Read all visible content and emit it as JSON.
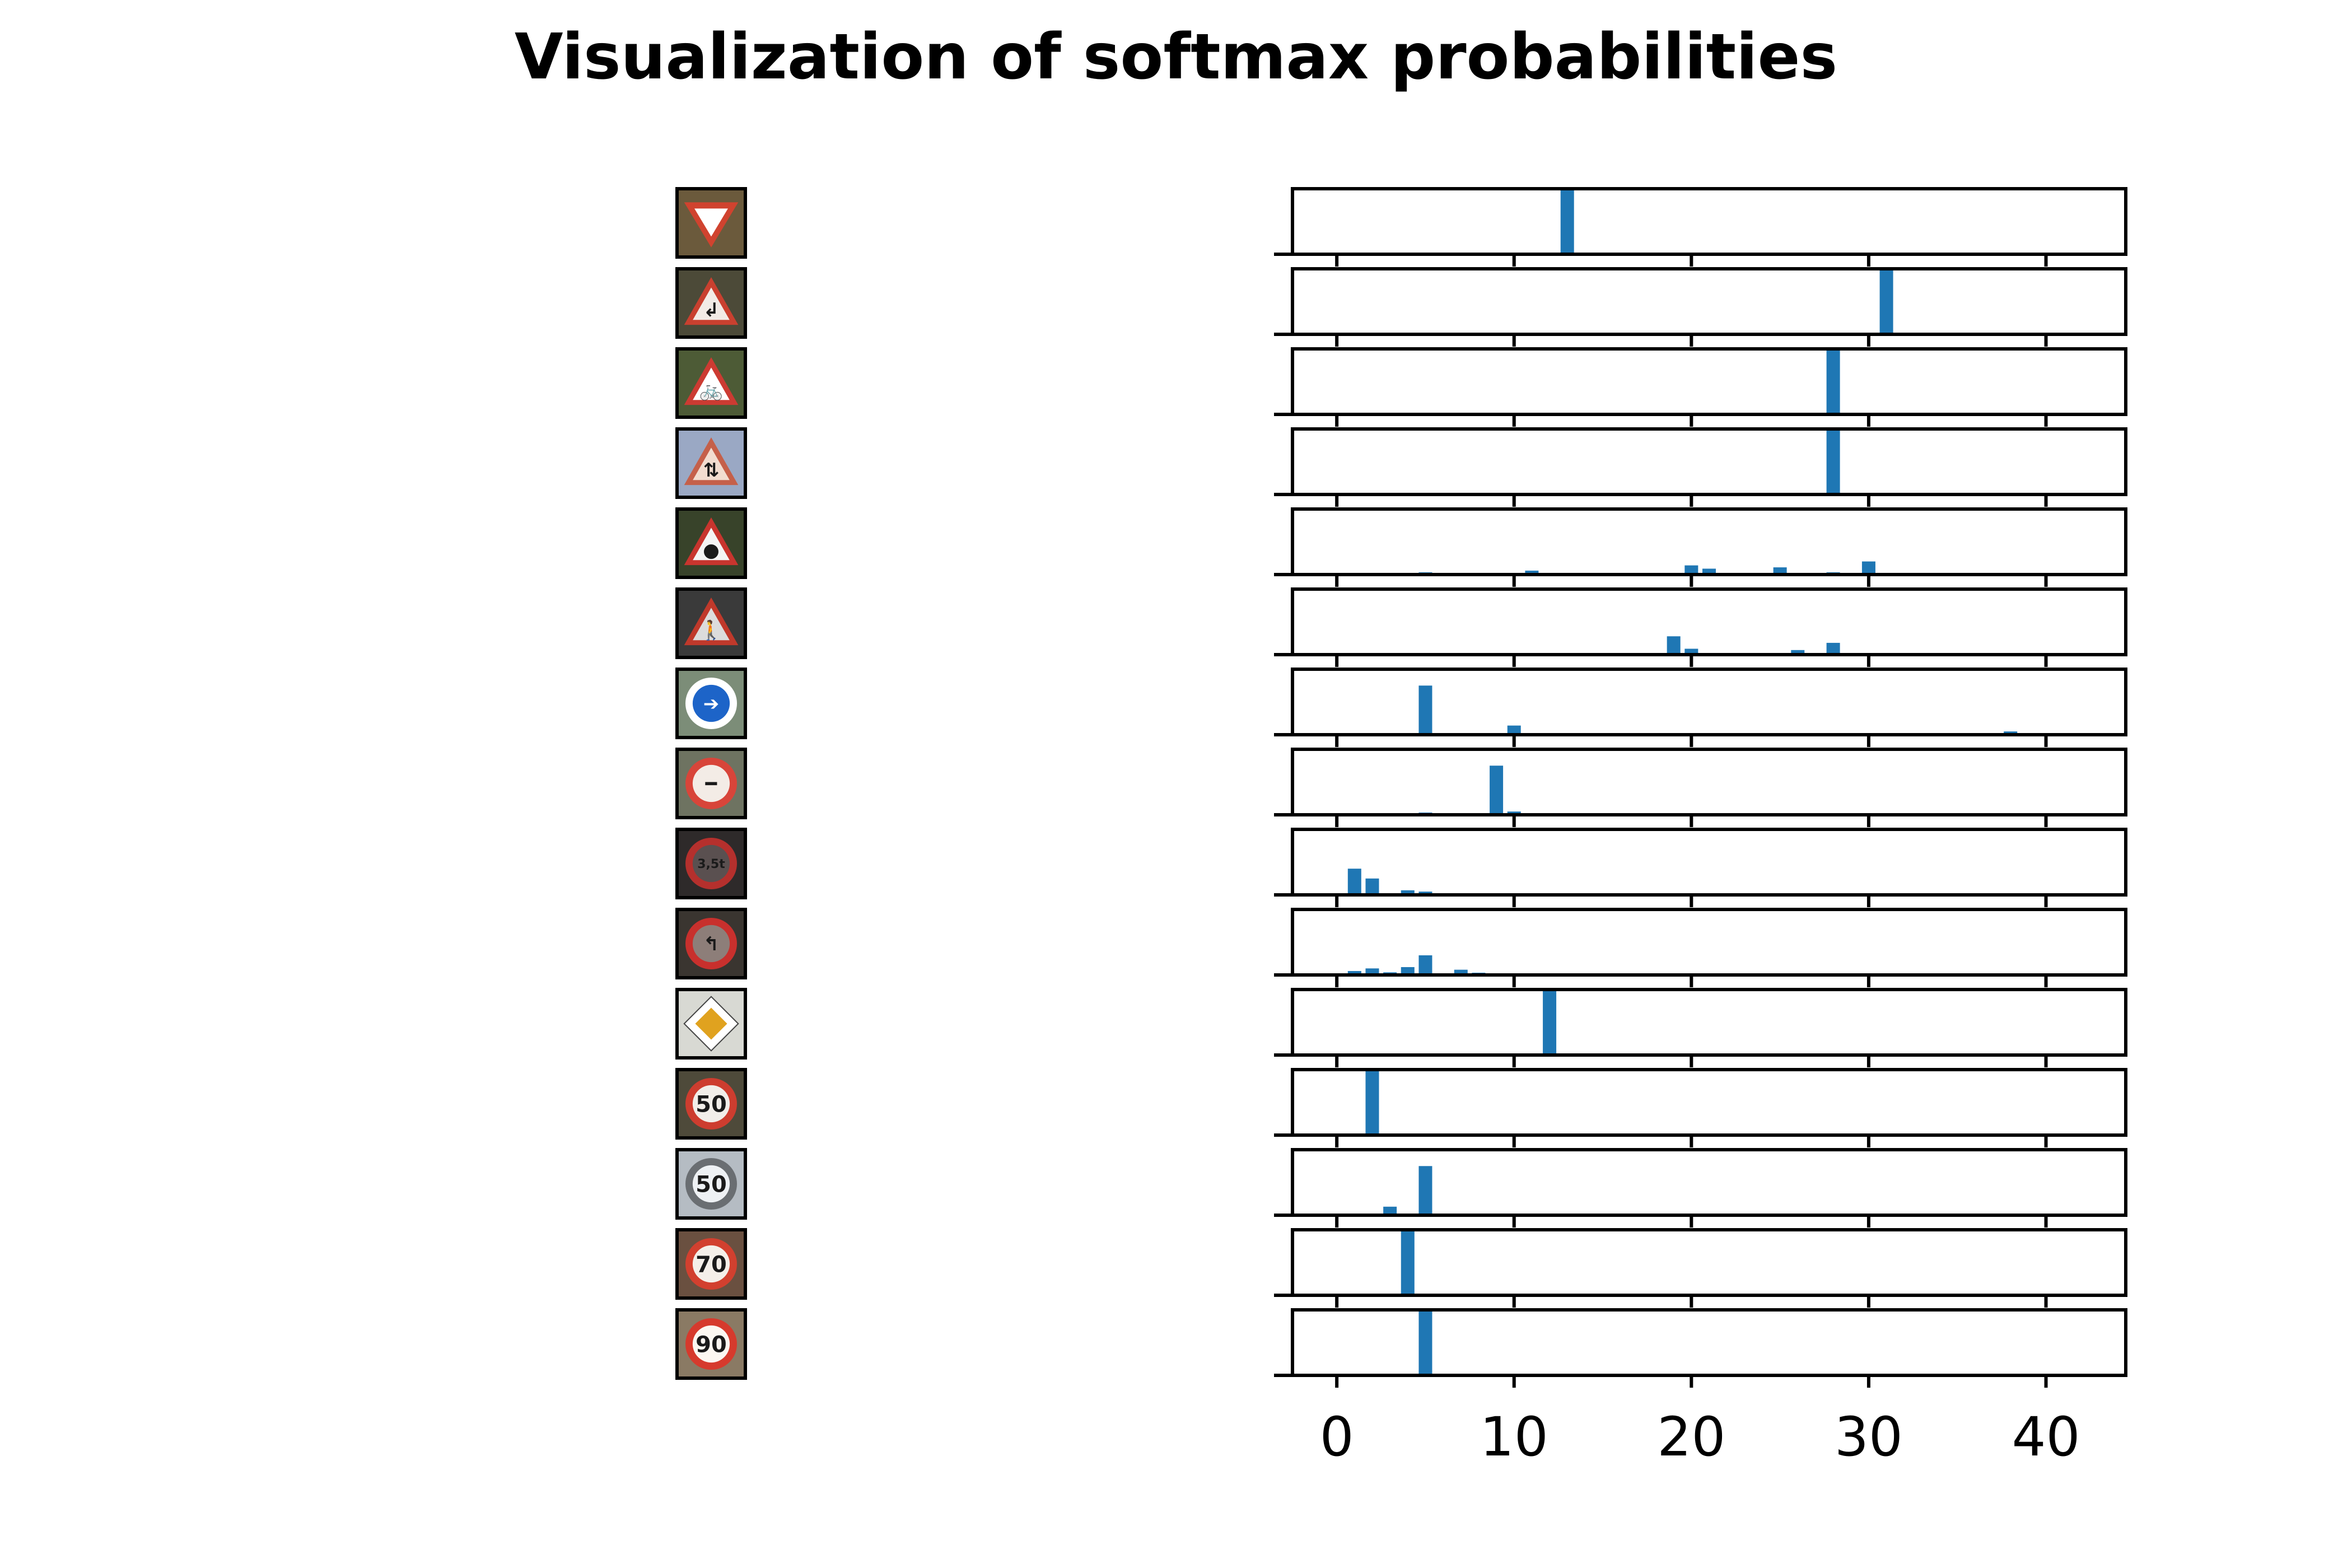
{
  "figure": {
    "title": "Visualization of softmax probabilities"
  },
  "signs": [
    {
      "name": "yield",
      "kind": "triangle-down",
      "bg": "#6b5a3c",
      "rim": "#d0432f",
      "face": "#ffffff",
      "symbol": ""
    },
    {
      "name": "curve-left",
      "kind": "triangle-up",
      "bg": "#4c4a38",
      "rim": "#c9402f",
      "face": "#f2ebe6",
      "symbol": "↲"
    },
    {
      "name": "bicycle-crossing",
      "kind": "triangle-up",
      "bg": "#4d5b36",
      "rim": "#cc3b32",
      "face": "#ffffff",
      "symbol": "🚲"
    },
    {
      "name": "two-way-traffic",
      "kind": "triangle-up",
      "bg": "#9aa8c4",
      "rim": "#c5604a",
      "face": "#f2ddd0",
      "symbol": "⇅"
    },
    {
      "name": "traffic-signals",
      "kind": "triangle-up",
      "bg": "#38432a",
      "rim": "#c8352e",
      "face": "#f4f4f4",
      "symbol": "●"
    },
    {
      "name": "pedestrian-crossing",
      "kind": "triangle-up",
      "bg": "#3a3a3a",
      "rim": "#c0392b",
      "face": "#dcdcdc",
      "symbol": "🚶"
    },
    {
      "name": "keep-right",
      "kind": "circle",
      "bg": "#7c8d78",
      "rim": "#ffffff",
      "face": "#1d64c8",
      "symbol": "➔"
    },
    {
      "name": "stop",
      "kind": "circle",
      "bg": "#6e7361",
      "rim": "#d8453a",
      "face": "#f3ece6",
      "symbol": "━"
    },
    {
      "name": "weight-limit-3-5t",
      "kind": "circle",
      "bg": "#2e2a2a",
      "rim": "#b5302d",
      "face": "#5a5050",
      "symbol": "3,5t"
    },
    {
      "name": "no-left-turn",
      "kind": "circle",
      "bg": "#3a3530",
      "rim": "#c8302d",
      "face": "#8d7e79",
      "symbol": "↰"
    },
    {
      "name": "priority-road",
      "kind": "diamond",
      "bg": "#d8d9d3",
      "rim": "#ffffff",
      "face": "#e0a21f",
      "symbol": ""
    },
    {
      "name": "speed-limit-50",
      "kind": "circle",
      "bg": "#4e4a3a",
      "rim": "#cd3d2f",
      "face": "#f1eee9",
      "symbol": "50"
    },
    {
      "name": "end-speed-limit-50",
      "kind": "circle",
      "bg": "#b5bcc3",
      "rim": "#6a6e72",
      "face": "#eef1f4",
      "symbol": "50"
    },
    {
      "name": "speed-limit-70",
      "kind": "circle",
      "bg": "#6a5040",
      "rim": "#d2402f",
      "face": "#f4efe9",
      "symbol": "70"
    },
    {
      "name": "speed-limit-90",
      "kind": "circle",
      "bg": "#8a7a64",
      "rim": "#d63a2d",
      "face": "#fbf7f1",
      "symbol": "90"
    }
  ],
  "chart_data": {
    "type": "bar",
    "title": "Visualization of softmax probabilities",
    "xlabel": "",
    "ylabel": "",
    "xlim": [
      -2.5,
      44.5
    ],
    "ylim": [
      0,
      1
    ],
    "xticks": [
      0,
      10,
      20,
      30,
      40
    ],
    "bar_color": "#1f77b4",
    "grid": false,
    "panels": [
      {
        "bars": [
          {
            "x": 13,
            "y": 1.0
          }
        ]
      },
      {
        "bars": [
          {
            "x": 31,
            "y": 0.99
          }
        ]
      },
      {
        "bars": [
          {
            "x": 28,
            "y": 1.0
          }
        ]
      },
      {
        "bars": [
          {
            "x": 28,
            "y": 1.0
          }
        ]
      },
      {
        "bars": [
          {
            "x": 5,
            "y": 0.01
          },
          {
            "x": 11,
            "y": 0.06
          },
          {
            "x": 20,
            "y": 0.14
          },
          {
            "x": 21,
            "y": 0.09
          },
          {
            "x": 25,
            "y": 0.11
          },
          {
            "x": 28,
            "y": 0.02
          },
          {
            "x": 30,
            "y": 0.2
          }
        ]
      },
      {
        "bars": [
          {
            "x": 19,
            "y": 0.28
          },
          {
            "x": 20,
            "y": 0.09
          },
          {
            "x": 26,
            "y": 0.07
          },
          {
            "x": 28,
            "y": 0.18
          }
        ]
      },
      {
        "bars": [
          {
            "x": 5,
            "y": 0.75
          },
          {
            "x": 10,
            "y": 0.14
          },
          {
            "x": 38,
            "y": 0.05
          }
        ]
      },
      {
        "bars": [
          {
            "x": 5,
            "y": 0.01
          },
          {
            "x": 9,
            "y": 0.75
          },
          {
            "x": 10,
            "y": 0.05
          }
        ]
      },
      {
        "bars": [
          {
            "x": 1,
            "y": 0.4
          },
          {
            "x": 2,
            "y": 0.25
          },
          {
            "x": 4,
            "y": 0.07
          },
          {
            "x": 5,
            "y": 0.05
          }
        ]
      },
      {
        "bars": [
          {
            "x": 1,
            "y": 0.06
          },
          {
            "x": 2,
            "y": 0.1
          },
          {
            "x": 3,
            "y": 0.04
          },
          {
            "x": 4,
            "y": 0.12
          },
          {
            "x": 5,
            "y": 0.3
          },
          {
            "x": 7,
            "y": 0.08
          },
          {
            "x": 8,
            "y": 0.03
          }
        ]
      },
      {
        "bars": [
          {
            "x": 12,
            "y": 1.0
          }
        ]
      },
      {
        "bars": [
          {
            "x": 2,
            "y": 1.0
          }
        ]
      },
      {
        "bars": [
          {
            "x": 3,
            "y": 0.13
          },
          {
            "x": 5,
            "y": 0.75
          }
        ]
      },
      {
        "bars": [
          {
            "x": 4,
            "y": 1.0
          }
        ]
      },
      {
        "bars": [
          {
            "x": 5,
            "y": 1.0
          }
        ]
      }
    ]
  }
}
